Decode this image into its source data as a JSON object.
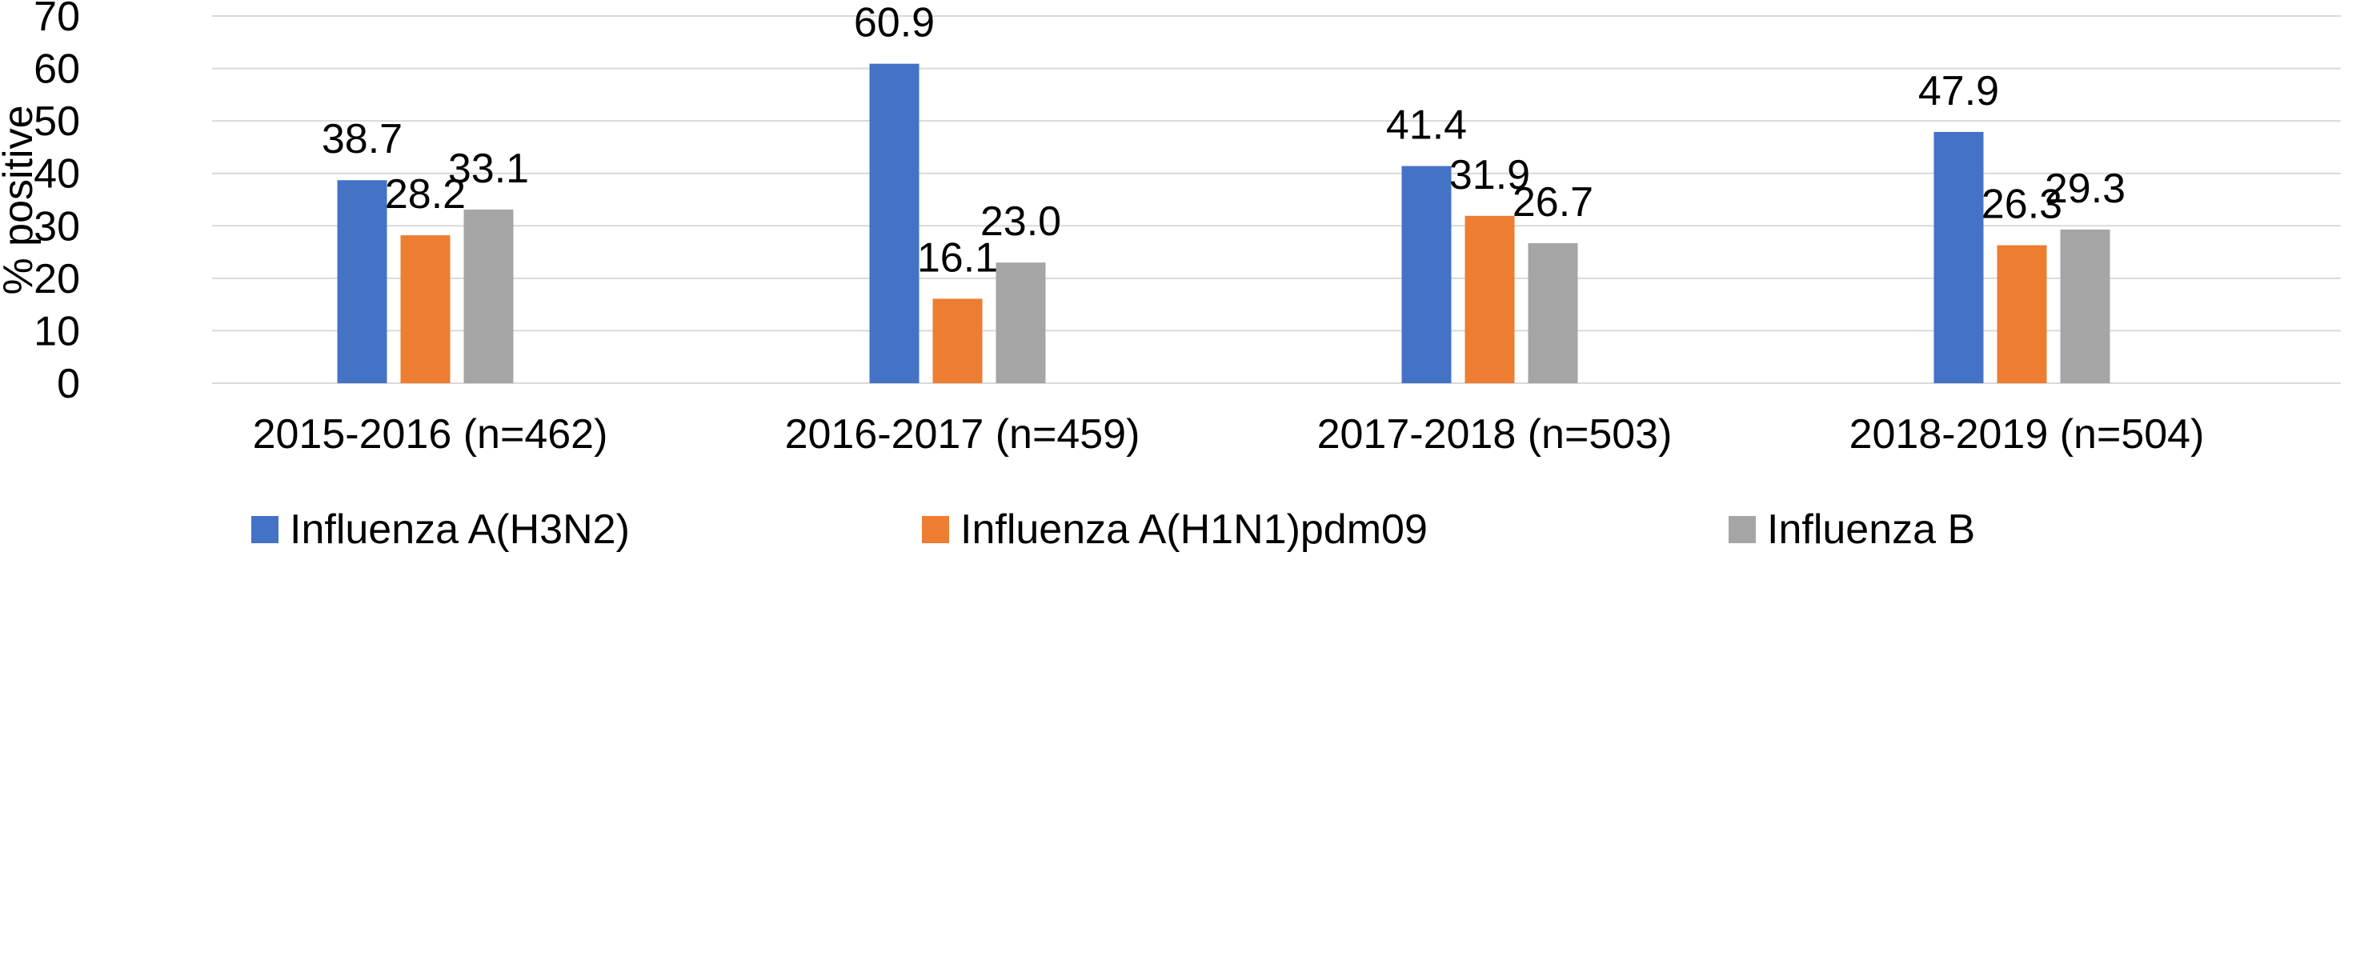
{
  "chart_data": {
    "type": "bar",
    "title": "",
    "xlabel": "",
    "ylabel": "% positive",
    "ylim": [
      0,
      70
    ],
    "yticks": [
      0,
      10,
      20,
      30,
      40,
      50,
      60,
      70
    ],
    "grid": true,
    "legend_position": "bottom",
    "categories": [
      "2015-2016 (n=462)",
      "2016-2017 (n=459)",
      "2017-2018 (n=503)",
      "2018-2019 (n=504)"
    ],
    "series": [
      {
        "name": "Influenza A(H3N2)",
        "color": "#4472c4",
        "values": [
          38.7,
          60.9,
          41.4,
          47.9
        ],
        "labels": [
          "38.7",
          "60.9",
          "41.4",
          "47.9"
        ]
      },
      {
        "name": "Influenza A(H1N1)pdm09",
        "color": "#ed7d31",
        "values": [
          28.2,
          16.1,
          31.9,
          26.3
        ],
        "labels": [
          "28.2",
          "16.1",
          "31.9",
          "26.3"
        ]
      },
      {
        "name": "Influenza B",
        "color": "#a5a5a5",
        "values": [
          33.1,
          23.0,
          26.7,
          29.3
        ],
        "labels": [
          "33.1",
          "23.0",
          "26.7",
          "29.3"
        ]
      }
    ]
  }
}
